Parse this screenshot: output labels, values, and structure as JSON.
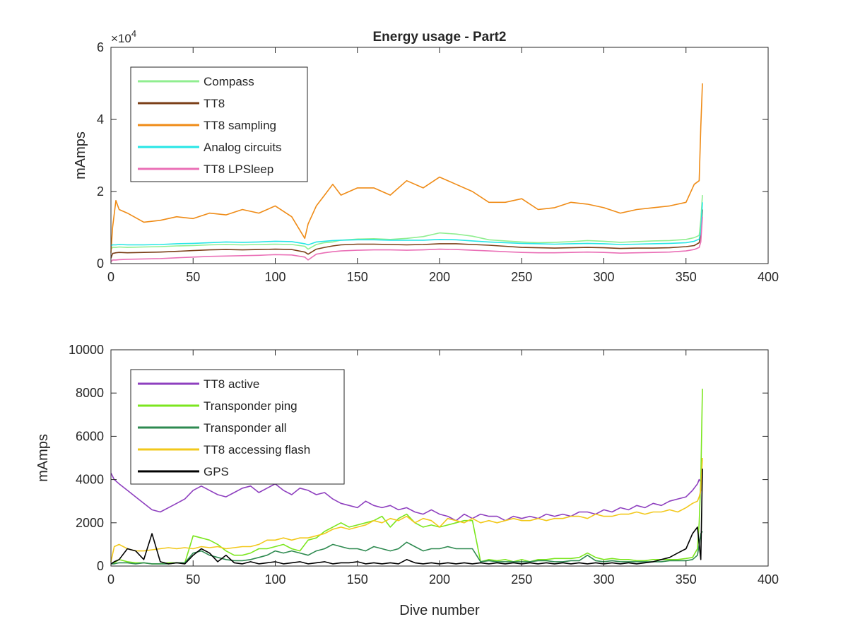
{
  "figure": {
    "background": "#ffffff"
  },
  "chart_data": [
    {
      "type": "line",
      "title": "Energy usage - Part2",
      "xlabel": "",
      "ylabel": "mAmps",
      "xlim": [
        0,
        400
      ],
      "ylim": [
        0,
        60000
      ],
      "x_ticks": [
        0,
        50,
        100,
        150,
        200,
        250,
        300,
        350,
        400
      ],
      "x_tick_labels": [
        "0",
        "50",
        "100",
        "150",
        "200",
        "250",
        "300",
        "350",
        "400"
      ],
      "y_ticks": [
        0,
        20000,
        40000,
        60000
      ],
      "y_tick_labels": [
        "0",
        "2",
        "4",
        "6"
      ],
      "y_exponent_label": "×10",
      "y_exponent_power": "4",
      "grid": false,
      "legend_position": "top-left",
      "x": [
        0,
        1,
        3,
        5,
        10,
        20,
        30,
        40,
        50,
        60,
        70,
        80,
        90,
        100,
        110,
        118,
        120,
        125,
        130,
        135,
        140,
        150,
        160,
        170,
        180,
        190,
        200,
        210,
        220,
        230,
        240,
        250,
        260,
        270,
        280,
        290,
        300,
        310,
        320,
        330,
        340,
        350,
        355,
        358,
        359,
        360
      ],
      "series": [
        {
          "name": "Compass",
          "color": "#90ee90",
          "values": [
            4000,
            4500,
            4500,
            4600,
            4500,
            4600,
            4700,
            4900,
            5000,
            5200,
            5300,
            5200,
            5300,
            5400,
            5300,
            4800,
            4000,
            5300,
            5800,
            6000,
            6500,
            6800,
            6900,
            6700,
            7000,
            7500,
            8500,
            8200,
            7600,
            6600,
            6300,
            6000,
            5800,
            5900,
            6100,
            6400,
            6200,
            5900,
            6100,
            6300,
            6400,
            6700,
            7200,
            7800,
            12000,
            19000
          ]
        },
        {
          "name": "TT8",
          "color": "#7b3f17",
          "values": [
            1500,
            2800,
            3000,
            3100,
            3000,
            3100,
            3200,
            3400,
            3600,
            3800,
            3900,
            3800,
            3900,
            4000,
            3900,
            3200,
            2600,
            4000,
            4500,
            4900,
            5200,
            5400,
            5400,
            5300,
            5200,
            5300,
            5500,
            5500,
            5300,
            5100,
            4800,
            4500,
            4400,
            4300,
            4400,
            4500,
            4400,
            4200,
            4300,
            4300,
            4400,
            4700,
            5000,
            5800,
            8000,
            15000
          ]
        },
        {
          "name": "TT8 sampling",
          "color": "#ef8b16",
          "values": [
            3000,
            10000,
            17500,
            15000,
            14000,
            11500,
            12000,
            13000,
            12500,
            14000,
            13500,
            15000,
            14000,
            16000,
            13000,
            7000,
            11000,
            16000,
            19000,
            22000,
            19000,
            21000,
            21000,
            19000,
            23000,
            21000,
            24000,
            22000,
            20000,
            17000,
            17000,
            18000,
            15000,
            15500,
            17000,
            16500,
            15500,
            14000,
            15000,
            15500,
            16000,
            17000,
            22000,
            23000,
            38000,
            50000
          ]
        },
        {
          "name": "Analog circuits",
          "color": "#27e6e6",
          "values": [
            5000,
            5200,
            5200,
            5300,
            5200,
            5200,
            5300,
            5500,
            5600,
            5800,
            6000,
            5900,
            6000,
            6200,
            6100,
            5500,
            5200,
            6000,
            6200,
            6400,
            6500,
            6600,
            6600,
            6500,
            6500,
            6500,
            6700,
            6600,
            6300,
            6000,
            5800,
            5600,
            5500,
            5400,
            5500,
            5600,
            5500,
            5300,
            5400,
            5500,
            5600,
            5800,
            6200,
            6800,
            9000,
            17000
          ]
        },
        {
          "name": "TT8 LPSleep",
          "color": "#ea6fb6",
          "values": [
            500,
            1000,
            1000,
            1100,
            1200,
            1300,
            1400,
            1600,
            1800,
            2000,
            2100,
            2200,
            2300,
            2500,
            2400,
            1800,
            1000,
            2600,
            3000,
            3300,
            3500,
            3700,
            3800,
            3800,
            3700,
            3800,
            4000,
            3900,
            3700,
            3500,
            3300,
            3100,
            3000,
            3000,
            3100,
            3200,
            3100,
            2900,
            3000,
            3100,
            3200,
            3500,
            3900,
            4500,
            6000,
            13000
          ]
        }
      ]
    },
    {
      "type": "line",
      "title": "",
      "xlabel": "Dive number",
      "ylabel": "mAmps",
      "xlim": [
        0,
        400
      ],
      "ylim": [
        0,
        10000
      ],
      "x_ticks": [
        0,
        50,
        100,
        150,
        200,
        250,
        300,
        350,
        400
      ],
      "x_tick_labels": [
        "0",
        "50",
        "100",
        "150",
        "200",
        "250",
        "300",
        "350",
        "400"
      ],
      "y_ticks": [
        0,
        2000,
        4000,
        6000,
        8000,
        10000
      ],
      "y_tick_labels": [
        "0",
        "2000",
        "4000",
        "6000",
        "8000",
        "10000"
      ],
      "grid": false,
      "legend_position": "top-left",
      "x": [
        0,
        2,
        5,
        10,
        15,
        20,
        25,
        30,
        35,
        40,
        45,
        50,
        55,
        60,
        65,
        70,
        75,
        80,
        85,
        90,
        95,
        100,
        105,
        110,
        115,
        120,
        125,
        130,
        135,
        140,
        145,
        150,
        155,
        160,
        165,
        170,
        175,
        180,
        185,
        190,
        195,
        200,
        205,
        210,
        215,
        220,
        225,
        230,
        235,
        240,
        245,
        250,
        255,
        260,
        265,
        270,
        275,
        280,
        285,
        290,
        295,
        300,
        305,
        310,
        315,
        320,
        325,
        330,
        335,
        340,
        345,
        350,
        354,
        357,
        358,
        359,
        360
      ],
      "series": [
        {
          "name": "TT8 active",
          "color": "#8e3fbf",
          "values": [
            4300,
            4000,
            3800,
            3500,
            3200,
            2900,
            2600,
            2500,
            2700,
            2900,
            3100,
            3500,
            3700,
            3500,
            3300,
            3200,
            3400,
            3600,
            3700,
            3400,
            3600,
            3800,
            3500,
            3300,
            3600,
            3500,
            3300,
            3400,
            3100,
            2900,
            2800,
            2700,
            3000,
            2800,
            2700,
            2800,
            2600,
            2700,
            2500,
            2400,
            2600,
            2400,
            2300,
            2100,
            2400,
            2200,
            2400,
            2300,
            2300,
            2100,
            2300,
            2200,
            2300,
            2200,
            2400,
            2300,
            2400,
            2300,
            2500,
            2500,
            2400,
            2600,
            2500,
            2700,
            2600,
            2800,
            2700,
            2900,
            2800,
            3000,
            3100,
            3200,
            3500,
            3800,
            4000,
            3900,
            4100
          ]
        },
        {
          "name": "Transponder ping",
          "color": "#7be61e",
          "values": [
            100,
            150,
            300,
            200,
            150,
            150,
            100,
            100,
            150,
            150,
            150,
            1400,
            1300,
            1200,
            1000,
            700,
            500,
            500,
            600,
            800,
            800,
            900,
            1000,
            800,
            700,
            1200,
            1300,
            1600,
            1800,
            2000,
            1800,
            1900,
            2000,
            2100,
            2300,
            1800,
            2200,
            2400,
            2000,
            1800,
            1900,
            1800,
            1900,
            2000,
            2100,
            2100,
            200,
            300,
            250,
            300,
            200,
            300,
            200,
            300,
            300,
            350,
            350,
            350,
            400,
            600,
            400,
            300,
            350,
            300,
            300,
            250,
            250,
            300,
            300,
            300,
            300,
            350,
            400,
            800,
            2000,
            4000,
            8200
          ]
        },
        {
          "name": "Transponder all",
          "color": "#2e8a50",
          "values": [
            100,
            100,
            150,
            150,
            100,
            150,
            100,
            100,
            100,
            150,
            150,
            600,
            700,
            500,
            400,
            300,
            250,
            250,
            300,
            400,
            500,
            700,
            600,
            700,
            600,
            500,
            700,
            800,
            1000,
            900,
            800,
            800,
            700,
            900,
            800,
            700,
            800,
            1100,
            900,
            700,
            800,
            800,
            900,
            800,
            800,
            800,
            200,
            250,
            200,
            200,
            200,
            200,
            200,
            250,
            250,
            200,
            200,
            250,
            250,
            500,
            250,
            200,
            250,
            200,
            200,
            200,
            200,
            200,
            200,
            250,
            250,
            250,
            300,
            500,
            1000,
            1500,
            1600
          ]
        },
        {
          "name": "TT8 accessing flash",
          "color": "#f2c81b",
          "values": [
            200,
            900,
            1000,
            800,
            700,
            700,
            750,
            800,
            850,
            800,
            850,
            800,
            900,
            850,
            900,
            800,
            850,
            900,
            900,
            1000,
            1200,
            1200,
            1300,
            1200,
            1300,
            1300,
            1400,
            1500,
            1700,
            1800,
            1700,
            1800,
            1900,
            2100,
            2000,
            2200,
            2100,
            2300,
            2000,
            2200,
            2100,
            1800,
            2200,
            2100,
            2000,
            2200,
            2000,
            2100,
            2000,
            2100,
            2200,
            2100,
            2100,
            2200,
            2100,
            2200,
            2200,
            2300,
            2300,
            2200,
            2400,
            2300,
            2300,
            2400,
            2400,
            2500,
            2400,
            2500,
            2500,
            2600,
            2500,
            2700,
            2900,
            3000,
            3200,
            3500,
            5000
          ]
        },
        {
          "name": "GPS",
          "color": "#000000",
          "values": [
            100,
            200,
            300,
            800,
            700,
            300,
            1500,
            200,
            100,
            150,
            100,
            500,
            800,
            600,
            200,
            500,
            150,
            100,
            200,
            100,
            150,
            200,
            100,
            150,
            200,
            100,
            150,
            200,
            100,
            150,
            150,
            200,
            100,
            150,
            100,
            150,
            100,
            300,
            150,
            100,
            150,
            100,
            150,
            100,
            150,
            100,
            150,
            100,
            150,
            100,
            150,
            100,
            150,
            100,
            150,
            100,
            150,
            100,
            150,
            100,
            150,
            100,
            150,
            100,
            150,
            100,
            150,
            200,
            300,
            400,
            600,
            800,
            1500,
            1800,
            1000,
            300,
            4500
          ]
        }
      ]
    }
  ]
}
